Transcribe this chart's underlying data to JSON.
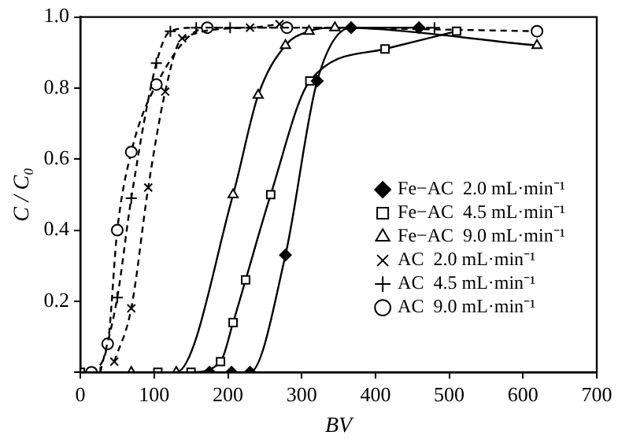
{
  "chart_data": {
    "type": "line",
    "xlabel": "BV",
    "ylabel": "C / C₀",
    "xlim": [
      0,
      700
    ],
    "xticks": [
      0,
      100,
      200,
      300,
      400,
      500,
      600,
      700
    ],
    "ylim": [
      0,
      1
    ],
    "yticks": [
      {
        "value": 0,
        "label": null
      },
      {
        "value": 0.2,
        "label": "0.2"
      },
      {
        "value": 0.4,
        "label": "0.4"
      },
      {
        "value": 0.6,
        "label": "0.6"
      },
      {
        "value": 0.8,
        "label": "0.8"
      },
      {
        "value": 1,
        "label": "1.0"
      }
    ],
    "grid": false,
    "legend": "right",
    "series": [
      {
        "name": "Fe−AC  2.0 mL·min⁻¹",
        "color": "#000000",
        "marker": "diamond",
        "line_style": "solid",
        "x": [
          175,
          205,
          230,
          278,
          321,
          367,
          459
        ],
        "values": [
          0,
          0,
          0,
          0.33,
          0.82,
          0.97,
          0.97
        ]
      },
      {
        "name": "Fe−AC  4.5 mL·min⁻¹",
        "color": "#000000",
        "marker": "square",
        "line_style": "solid",
        "x": [
          0,
          105,
          150,
          190,
          207,
          224,
          258,
          311,
          413,
          510
        ],
        "values": [
          0,
          0,
          0,
          0.03,
          0.14,
          0.26,
          0.5,
          0.82,
          0.91,
          0.96
        ]
      },
      {
        "name": "Fe−AC  9.0 mL·min⁻¹",
        "color": "#000000",
        "marker": "triangle",
        "line_style": "solid",
        "x": [
          69,
          130,
          207,
          241,
          278,
          310,
          345,
          619
        ],
        "values": [
          0,
          0,
          0.5,
          0.78,
          0.92,
          0.96,
          0.97,
          0.92
        ]
      },
      {
        "name": "AC  2.0 mL·min⁻¹",
        "color": "#000000",
        "marker": "cross",
        "line_style": "dashed",
        "x": [
          46,
          69,
          92,
          115,
          138,
          230,
          270
        ],
        "values": [
          0.03,
          0.18,
          0.52,
          0.79,
          0.94,
          0.97,
          0.98
        ]
      },
      {
        "name": "AC  4.5 mL·min⁻¹",
        "color": "#000000",
        "marker": "plus",
        "line_style": "dashed",
        "x": [
          27,
          50,
          69,
          103,
          122,
          157,
          203,
          480
        ],
        "values": [
          0,
          0.21,
          0.49,
          0.87,
          0.96,
          0.97,
          0.97,
          0.97
        ]
      },
      {
        "name": "AC  9.0 mL·min⁻¹",
        "color": "#000000",
        "marker": "circle",
        "line_style": "dashed",
        "x": [
          15,
          37,
          50,
          69,
          103,
          172,
          280,
          619
        ],
        "values": [
          0,
          0.08,
          0.4,
          0.62,
          0.81,
          0.97,
          0.97,
          0.96
        ]
      }
    ]
  }
}
